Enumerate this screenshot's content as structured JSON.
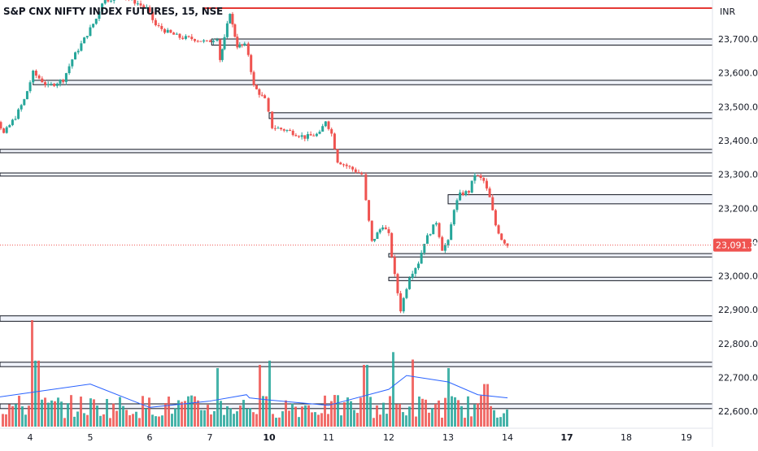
{
  "header": {
    "symbol_title": "S&P CNX NIFTY INDEX FUTURES, 15, NSE",
    "currency": "INR"
  },
  "colors": {
    "up": "#26a69a",
    "down": "#ef5350",
    "resistance_line": "#e53935",
    "volume_ma": "#2962ff",
    "zone_border": "#131722",
    "zone_fill": "#f0f3fa",
    "axis_text": "#131722"
  },
  "chart_data": {
    "type": "candlestick",
    "symbol": "S&P CNX NIFTY INDEX FUTURES",
    "interval": "15",
    "exchange": "NSE",
    "last_price": "23,091.20",
    "y_ticks": [
      "23,700.00",
      "23,600.00",
      "23,500.00",
      "23,400.00",
      "23,300.00",
      "23,200.00",
      "23,100.00",
      "23,000.00",
      "22,900.00",
      "22,800.00",
      "22,700.00",
      "22,600.00"
    ],
    "ylim": [
      22580,
      23800
    ],
    "x_ticks": [
      {
        "label": "4",
        "bold": false
      },
      {
        "label": "5",
        "bold": false
      },
      {
        "label": "6",
        "bold": false
      },
      {
        "label": "7",
        "bold": false
      },
      {
        "label": "10",
        "bold": true
      },
      {
        "label": "11",
        "bold": false
      },
      {
        "label": "12",
        "bold": false
      },
      {
        "label": "13",
        "bold": false
      },
      {
        "label": "14",
        "bold": false
      },
      {
        "label": "17",
        "bold": true
      },
      {
        "label": "18",
        "bold": false
      },
      {
        "label": "19",
        "bold": false
      }
    ],
    "resistance_line_price": 23780,
    "zones": [
      {
        "top": 23700,
        "bottom": 23682,
        "start_day": 7.05
      },
      {
        "top": 23578,
        "bottom": 23565,
        "start_day": 4.05
      },
      {
        "top": 23482,
        "bottom": 23465,
        "start_day": 10.0
      },
      {
        "top": 23374,
        "bottom": 23364,
        "start_day": 3.0
      },
      {
        "top": 23304,
        "bottom": 23295,
        "start_day": 3.0
      },
      {
        "top": 23240,
        "bottom": 23213,
        "start_day": 13.0
      },
      {
        "top": 23066,
        "bottom": 23056,
        "start_day": 12.0
      },
      {
        "top": 22996,
        "bottom": 22986,
        "start_day": 12.0
      },
      {
        "top": 22882,
        "bottom": 22866,
        "start_day": 3.0
      },
      {
        "top": 22745,
        "bottom": 22732,
        "start_day": 3.0
      },
      {
        "top": 22622,
        "bottom": 22608,
        "start_day": 3.0
      }
    ],
    "path_points": [
      [
        3.0,
        23370
      ],
      [
        3.2,
        23400
      ],
      [
        3.45,
        23460
      ],
      [
        3.55,
        23420
      ],
      [
        3.75,
        23470
      ],
      [
        3.9,
        23520
      ],
      [
        4.05,
        23600
      ],
      [
        4.3,
        23560
      ],
      [
        4.55,
        23580
      ],
      [
        4.7,
        23640
      ],
      [
        4.9,
        23700
      ],
      [
        5.1,
        23760
      ],
      [
        5.2,
        23810
      ],
      [
        5.5,
        23830
      ],
      [
        5.75,
        23810
      ],
      [
        5.95,
        23790
      ],
      [
        6.1,
        23740
      ],
      [
        6.3,
        23720
      ],
      [
        6.5,
        23705
      ],
      [
        6.75,
        23700
      ],
      [
        6.95,
        23690
      ],
      [
        7.1,
        23700
      ],
      [
        7.2,
        23705
      ],
      [
        7.28,
        23640
      ],
      [
        7.4,
        23700
      ],
      [
        7.55,
        23780
      ],
      [
        7.62,
        23740
      ],
      [
        7.75,
        23680
      ],
      [
        7.95,
        23680
      ],
      [
        8.05,
        23655
      ],
      [
        8.2,
        23560
      ],
      [
        8.35,
        23540
      ],
      [
        8.5,
        23520
      ],
      [
        8.6,
        23480
      ],
      [
        10.05,
        23440
      ],
      [
        10.3,
        23430
      ],
      [
        10.6,
        23410
      ],
      [
        10.85,
        23420
      ],
      [
        10.95,
        23460
      ],
      [
        11.05,
        23420
      ],
      [
        11.15,
        23340
      ],
      [
        11.35,
        23320
      ],
      [
        11.55,
        23300
      ],
      [
        11.62,
        23220
      ],
      [
        11.72,
        23100
      ],
      [
        11.9,
        23150
      ],
      [
        12.0,
        23120
      ],
      [
        12.1,
        23000
      ],
      [
        12.2,
        22900
      ],
      [
        12.35,
        23000
      ],
      [
        12.5,
        23040
      ],
      [
        12.6,
        23100
      ],
      [
        12.8,
        23160
      ],
      [
        12.9,
        23080
      ],
      [
        13.0,
        23100
      ],
      [
        13.1,
        23200
      ],
      [
        13.2,
        23240
      ],
      [
        13.35,
        23250
      ],
      [
        13.45,
        23300
      ],
      [
        13.6,
        23280
      ],
      [
        13.7,
        23230
      ],
      [
        13.8,
        23150
      ],
      [
        13.9,
        23110
      ],
      [
        14.0,
        23091
      ]
    ],
    "volume": {
      "max_bar_day": 4.02,
      "ma_points": [
        [
          3.0,
          0.28
        ],
        [
          4.0,
          0.32
        ],
        [
          5.0,
          0.4
        ],
        [
          6.0,
          0.18
        ],
        [
          7.0,
          0.24
        ],
        [
          8.0,
          0.3
        ],
        [
          9.0,
          0.27
        ],
        [
          10.0,
          0.25
        ],
        [
          11.0,
          0.2
        ],
        [
          12.0,
          0.35
        ],
        [
          12.3,
          0.48
        ],
        [
          13.0,
          0.42
        ],
        [
          13.5,
          0.3
        ],
        [
          14.0,
          0.27
        ]
      ],
      "spikes": [
        [
          4.02,
          1.0
        ],
        [
          4.1,
          0.62
        ],
        [
          7.15,
          0.55
        ],
        [
          8.3,
          0.58
        ],
        [
          10.0,
          0.62
        ],
        [
          11.6,
          0.58
        ],
        [
          12.05,
          0.7
        ],
        [
          12.4,
          0.63
        ],
        [
          13.0,
          0.55
        ],
        [
          13.62,
          0.4
        ]
      ]
    }
  }
}
